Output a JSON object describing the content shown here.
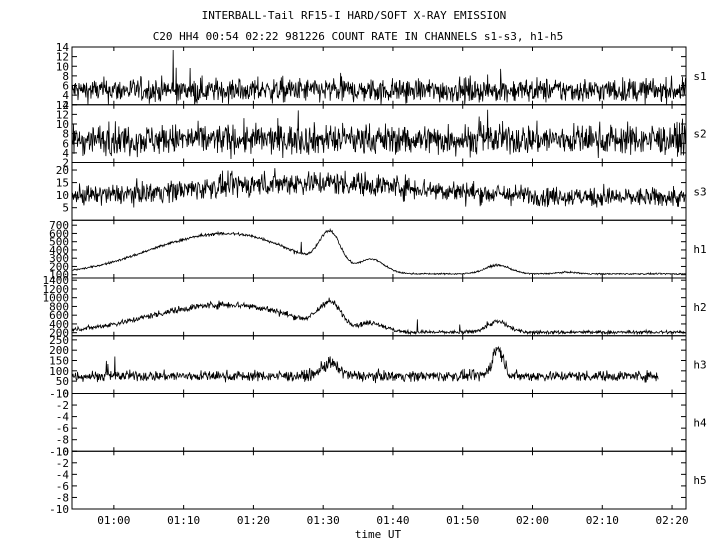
{
  "title": "INTERBALL-Tail RF15-I HARD/SOFT X-RAY EMISSION",
  "subtitle": "C20 HH4 00:54 02:22 981226  COUNT RATE IN CHANNELS s1-s3, h1-h5",
  "colors": {
    "trace": "#000000",
    "background": "#ffffff"
  },
  "chart_data": {
    "type": "line",
    "xlabel": "time UT",
    "x_unit": "UT hh:mm",
    "xlim": [
      "00:54",
      "02:22"
    ],
    "x_ticks": [
      "01:00",
      "01:10",
      "01:20",
      "01:30",
      "01:40",
      "01:50",
      "02:00",
      "02:10",
      "02:20"
    ],
    "grid": false,
    "panels": [
      {
        "name": "s1",
        "ylim": [
          2,
          14
        ],
        "y_ticks": [
          2,
          4,
          6,
          8,
          10,
          12,
          14
        ],
        "model": {
          "baseline": 5,
          "noise": 2.4,
          "spike_max": 14,
          "shape": []
        }
      },
      {
        "name": "s2",
        "ylim": [
          2,
          14
        ],
        "y_ticks": [
          2,
          4,
          6,
          8,
          10,
          12,
          14
        ],
        "model": {
          "baseline": 6.8,
          "noise": 3.0,
          "spike_max": 13,
          "shape": []
        }
      },
      {
        "name": "s3",
        "ylim": [
          0,
          23
        ],
        "y_ticks": [
          5,
          10,
          15,
          20
        ],
        "model": {
          "baseline": 9,
          "noise": 3.6,
          "spike_max": 20,
          "shape": [
            {
              "t": "01:28",
              "amp": 6,
              "width_min": 16
            }
          ]
        }
      },
      {
        "name": "h1",
        "ylim": [
          60,
          760
        ],
        "y_ticks": [
          100,
          200,
          300,
          400,
          500,
          600,
          700
        ],
        "model": {
          "baseline": 110,
          "noise": 8,
          "spike_max": 500,
          "shape": [
            {
              "t": "01:13",
              "amp": 420,
              "width_min": 9
            },
            {
              "t": "01:22",
              "amp": 150,
              "width_min": 6
            },
            {
              "t": "01:31",
              "amp": 420,
              "width_min": 1.5
            },
            {
              "t": "01:37",
              "amp": 160,
              "width_min": 1.8
            },
            {
              "t": "01:55",
              "amp": 105,
              "width_min": 1.8
            },
            {
              "t": "02:05",
              "amp": 20,
              "width_min": 1.5
            }
          ]
        }
      },
      {
        "name": "h2",
        "ylim": [
          130,
          1450
        ],
        "y_ticks": [
          200,
          400,
          600,
          800,
          1000,
          1200,
          1400
        ],
        "model": {
          "baseline": 210,
          "noise": 40,
          "spike_max": 800,
          "shape": [
            {
              "t": "01:13",
              "amp": 540,
              "width_min": 9
            },
            {
              "t": "01:22",
              "amp": 200,
              "width_min": 6
            },
            {
              "t": "01:31",
              "amp": 560,
              "width_min": 1.6
            },
            {
              "t": "01:37",
              "amp": 190,
              "width_min": 1.8
            },
            {
              "t": "01:55",
              "amp": 240,
              "width_min": 1.5
            }
          ]
        }
      },
      {
        "name": "h3",
        "ylim": [
          -10,
          270
        ],
        "y_ticks": [
          -10,
          50,
          100,
          150,
          200,
          250
        ],
        "model": {
          "baseline": 75,
          "noise": 24,
          "spike_max": 170,
          "end": "02:18",
          "shape": [
            {
              "t": "01:31",
              "amp": 60,
              "width_min": 1.2
            },
            {
              "t": "01:55",
              "amp": 130,
              "width_min": 0.8
            }
          ]
        }
      },
      {
        "name": "h4",
        "ylim": [
          -10,
          0
        ],
        "y_ticks": [
          -10,
          -8,
          -6,
          -4,
          -2,
          0
        ],
        "model": null
      },
      {
        "name": "h5",
        "ylim": [
          -10,
          0
        ],
        "y_ticks": [
          -10,
          -8,
          -6,
          -4,
          -2,
          0
        ],
        "model": null
      }
    ]
  }
}
